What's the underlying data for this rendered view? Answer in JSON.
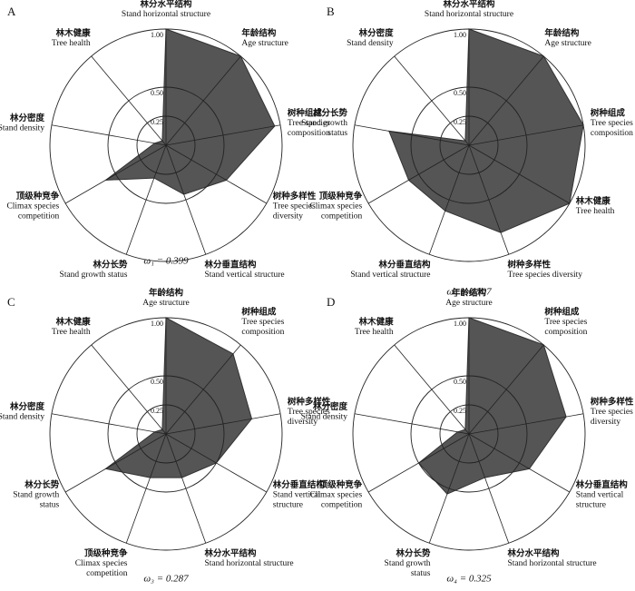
{
  "chart_data": [
    {
      "type": "radar",
      "panel": "A",
      "caption": "ω₁ = 0.399",
      "color": "#555555",
      "categories": [
        "林分水平结构",
        "年龄结构",
        "树种组成",
        "树种多样性",
        "林分垂直结构",
        "林分长势",
        "顶级种竞争",
        "林分密度",
        "林木健康"
      ],
      "categories_en": [
        [
          "Stand horizontal structure"
        ],
        [
          "Age structure"
        ],
        [
          "Tree species",
          "composition"
        ],
        [
          "Tree species",
          "diversity"
        ],
        [
          "Stand vertical structure"
        ],
        [
          "Stand growth status"
        ],
        [
          "Climax species",
          "competition"
        ],
        [
          "Stand density"
        ],
        [
          "Tree health"
        ]
      ],
      "values": [
        1.0,
        1.0,
        0.95,
        0.6,
        0.45,
        0.3,
        0.6,
        0.1,
        0.05
      ],
      "rlim": [
        0,
        1
      ],
      "rticks": [
        0.25,
        {
          "value": 0.5,
          "label": "0.50"
        },
        {
          "value": 1,
          "label": "1.00"
        }
      ]
    },
    {
      "type": "radar",
      "panel": "B",
      "caption": "ω₂ = 0.507",
      "color": "#555555",
      "categories": [
        "林分水平结构",
        "年龄结构",
        "树种组成",
        "林木健康",
        "树种多样性",
        "林分垂直结构",
        "顶级种竞争",
        "林分长势",
        "林分密度"
      ],
      "categories_en": [
        [
          "Stand horizontal structure"
        ],
        [
          "Age structure"
        ],
        [
          "Tree species",
          "composition"
        ],
        [
          "Tree health"
        ],
        [
          "Tree species diversity"
        ],
        [
          "Stand vertical structure"
        ],
        [
          "Climax species",
          "competition"
        ],
        [
          "Stand growth",
          "status"
        ],
        [
          "Stand density"
        ]
      ],
      "values": [
        1.0,
        1.0,
        1.0,
        1.0,
        0.8,
        0.6,
        0.6,
        0.7,
        0.05
      ],
      "rlim": [
        0,
        1
      ],
      "rticks": [
        0.25,
        {
          "value": 0.5,
          "label": "0.50"
        },
        {
          "value": 1,
          "label": "1.00"
        }
      ]
    },
    {
      "type": "radar",
      "panel": "C",
      "caption": "ω₃ = 0.287",
      "color": "#555555",
      "categories": [
        "年龄结构",
        "树种组成",
        "树种多样性",
        "林分垂直结构",
        "林分水平结构",
        "顶级种竞争",
        "林分长势",
        "林分密度",
        "林木健康"
      ],
      "categories_en": [
        [
          "Age structure"
        ],
        [
          "Tree species",
          "composition"
        ],
        [
          "Tree species",
          "diversity"
        ],
        [
          "Stand vertical",
          "structure"
        ],
        [
          "Stand horizontal structure"
        ],
        [
          "Climax species",
          "competition"
        ],
        [
          "Stand growth",
          "status"
        ],
        [
          "Stand density"
        ],
        [
          "Tree health"
        ]
      ],
      "values": [
        1.0,
        0.9,
        0.75,
        0.5,
        0.4,
        0.4,
        0.6,
        0.1,
        0.05
      ],
      "rlim": [
        0,
        1
      ],
      "rticks": [
        0.25,
        {
          "value": 0.5,
          "label": "0.50"
        },
        {
          "value": 1,
          "label": "1.00"
        }
      ]
    },
    {
      "type": "radar",
      "panel": "D",
      "caption": "ω₄ = 0.325",
      "color": "#555555",
      "categories": [
        "年龄结构",
        "树种组成",
        "树种多样性",
        "林分垂直结构",
        "林分水平结构",
        "林分长势",
        "顶级种竞争",
        "林分密度",
        "林木健康"
      ],
      "categories_en": [
        [
          "Age structure"
        ],
        [
          "Tree species",
          "composition"
        ],
        [
          "Tree species",
          "diversity"
        ],
        [
          "Stand vertical",
          "structure"
        ],
        [
          "Stand horizontal structure"
        ],
        [
          "Stand growth",
          "status"
        ],
        [
          "Climax species",
          "competition"
        ],
        [
          "Stand density"
        ],
        [
          "Tree health"
        ]
      ],
      "values": [
        1.0,
        1.0,
        0.85,
        0.6,
        0.4,
        0.55,
        0.5,
        0.1,
        0.05
      ],
      "rlim": [
        0,
        1
      ],
      "rticks": [
        0.25,
        {
          "value": 0.5,
          "label": "0.50"
        },
        {
          "value": 1,
          "label": "1.00"
        }
      ]
    }
  ]
}
